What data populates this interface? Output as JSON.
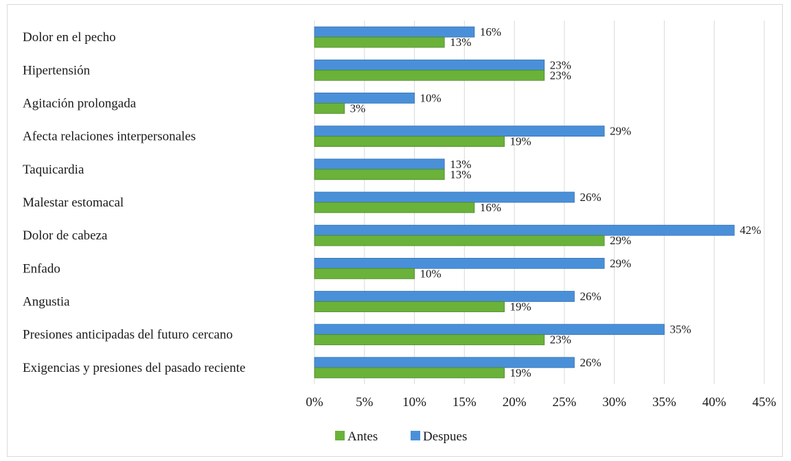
{
  "chart_data": {
    "type": "bar",
    "orientation": "horizontal",
    "title": "",
    "xlabel": "",
    "ylabel": "",
    "xlim": [
      0,
      45
    ],
    "x_ticks": [
      "0%",
      "5%",
      "10%",
      "15%",
      "20%",
      "25%",
      "30%",
      "35%",
      "40%",
      "45%"
    ],
    "value_suffix": "%",
    "grid": "vertical",
    "legend_position": "bottom",
    "categories": [
      "Dolor en el pecho",
      "Hipertensión",
      "Agitación prolongada",
      "Afecta relaciones interpersonales",
      "Taquicardia",
      "Malestar estomacal",
      "Dolor de cabeza",
      "Enfado",
      "Angustia",
      "Presiones anticipadas del futuro cercano",
      "Exigencias y presiones del pasado reciente"
    ],
    "series": [
      {
        "name": "Despues",
        "color": "#4a90d9",
        "edge": "#2f6fb0",
        "values": [
          16,
          23,
          10,
          29,
          13,
          26,
          42,
          29,
          26,
          35,
          26
        ]
      },
      {
        "name": "Antes",
        "color": "#6ab23a",
        "edge": "#4a8a24",
        "values": [
          13,
          23,
          3,
          19,
          13,
          16,
          29,
          10,
          19,
          23,
          19
        ]
      }
    ],
    "legend": [
      {
        "name": "Antes",
        "color": "#6ab23a"
      },
      {
        "name": "Despues",
        "color": "#4a90d9"
      }
    ]
  }
}
